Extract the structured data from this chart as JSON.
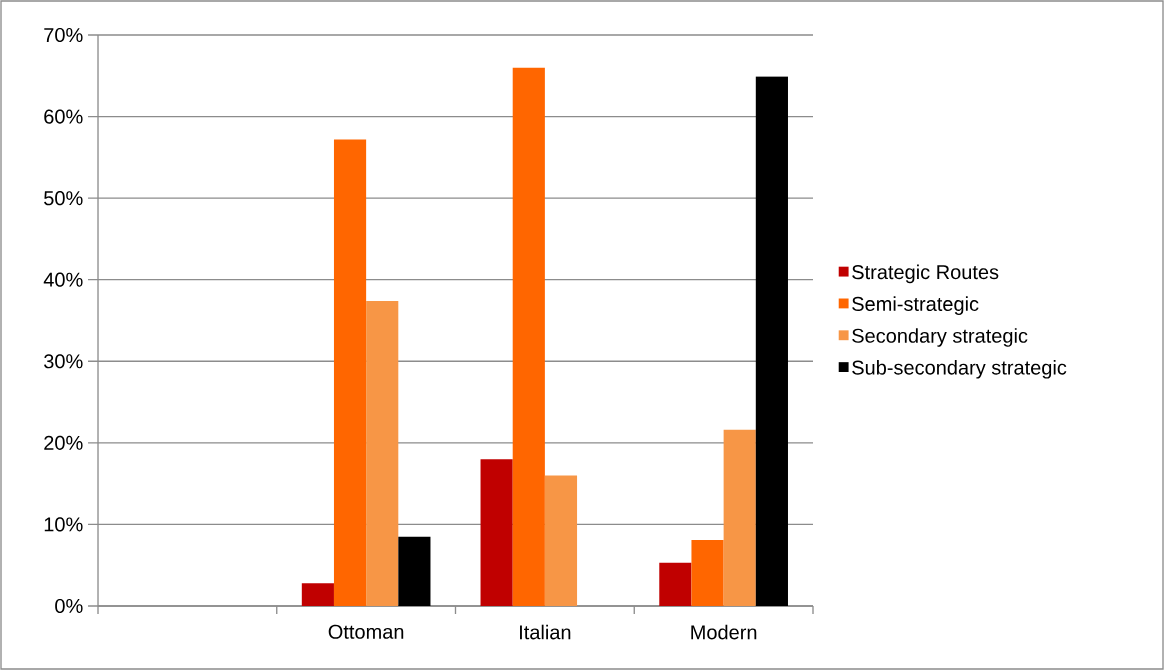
{
  "chart_data": {
    "type": "bar",
    "categories": [
      null,
      "Ottoman",
      "Italian",
      "Modern"
    ],
    "series": [
      {
        "name": "Strategic Routes",
        "color": "#c00000",
        "values": [
          null,
          2.8,
          18.0,
          5.3
        ]
      },
      {
        "name": "Semi-strategic",
        "color": "#ff6600",
        "values": [
          null,
          57.2,
          66.0,
          8.1
        ]
      },
      {
        "name": "Secondary strategic",
        "color": "#f79646",
        "values": [
          null,
          37.4,
          16.0,
          21.6
        ]
      },
      {
        "name": "Sub-secondary strategic",
        "color": "#000000",
        "values": [
          null,
          8.5,
          0,
          64.9
        ]
      }
    ],
    "ylim": [
      0,
      70
    ],
    "yticks": [
      {
        "value": 0,
        "label": "0%"
      },
      {
        "value": 10,
        "label": "10%"
      },
      {
        "value": 20,
        "label": "20%"
      },
      {
        "value": 30,
        "label": "30%"
      },
      {
        "value": 40,
        "label": "40%"
      },
      {
        "value": 50,
        "label": "50%"
      },
      {
        "value": 60,
        "label": "60%"
      },
      {
        "value": 70,
        "label": "70%"
      }
    ],
    "grid": "y",
    "legend": "right"
  }
}
